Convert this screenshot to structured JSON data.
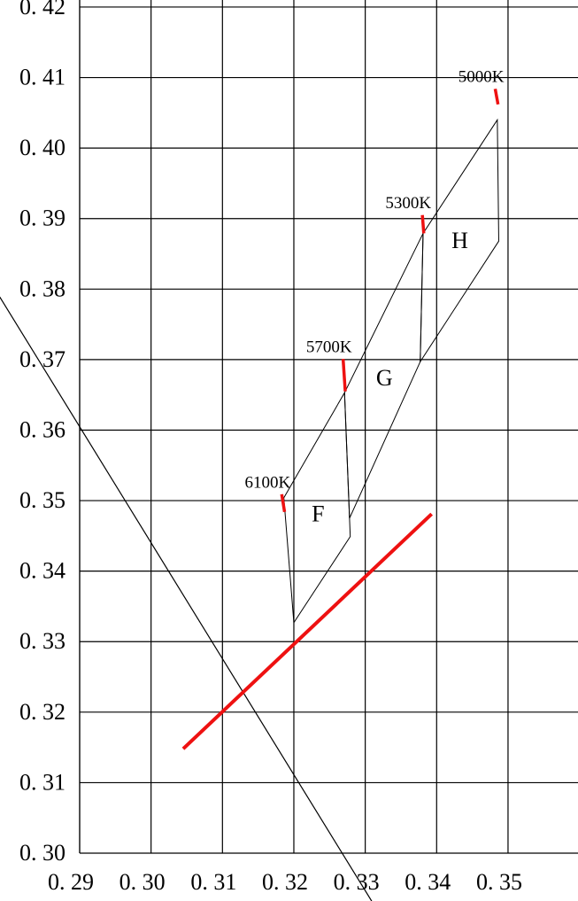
{
  "chart_data": {
    "type": "chromaticity",
    "xlim": [
      0.29,
      0.3598
    ],
    "ylim": [
      0.3,
      0.421
    ],
    "xticks": [
      {
        "value": 0.29,
        "label": "0. 29"
      },
      {
        "value": 0.3,
        "label": "0. 30"
      },
      {
        "value": 0.31,
        "label": "0. 31"
      },
      {
        "value": 0.32,
        "label": "0. 32"
      },
      {
        "value": 0.33,
        "label": "0. 33"
      },
      {
        "value": 0.34,
        "label": "0. 34"
      },
      {
        "value": 0.35,
        "label": "0. 35"
      }
    ],
    "yticks": [
      {
        "value": 0.3,
        "label": "0. 30"
      },
      {
        "value": 0.31,
        "label": "0. 31"
      },
      {
        "value": 0.32,
        "label": "0. 32"
      },
      {
        "value": 0.33,
        "label": "0. 33"
      },
      {
        "value": 0.34,
        "label": "0. 34"
      },
      {
        "value": 0.35,
        "label": "0. 35"
      },
      {
        "value": 0.36,
        "label": "0. 36"
      },
      {
        "value": 0.37,
        "label": "0. 37"
      },
      {
        "value": 0.38,
        "label": "0. 38"
      },
      {
        "value": 0.39,
        "label": "0. 39"
      },
      {
        "value": 0.4,
        "label": "0. 40"
      },
      {
        "value": 0.41,
        "label": "0. 41"
      },
      {
        "value": 0.42,
        "label": "0. 42"
      }
    ],
    "grid": true,
    "regions": [
      {
        "name": "F",
        "x": [
          0.3186,
          0.3271,
          0.3279,
          0.32
        ],
        "y": [
          0.3504,
          0.3653,
          0.3449,
          0.3327
        ]
      },
      {
        "name": "G",
        "x": [
          0.3271,
          0.3381,
          0.3377,
          0.3278
        ],
        "y": [
          0.3653,
          0.3879,
          0.3697,
          0.3475
        ]
      },
      {
        "name": "H",
        "x": [
          0.3381,
          0.3485,
          0.3487,
          0.3377
        ],
        "y": [
          0.3879,
          0.404,
          0.3868,
          0.3697
        ]
      }
    ],
    "cct_marks": [
      {
        "name": "6100K",
        "x": [
          0.3183,
          0.3187
        ],
        "y": [
          0.3509,
          0.3484
        ]
      },
      {
        "name": "5700K",
        "x": [
          0.3269,
          0.3272
        ],
        "y": [
          0.3701,
          0.3655
        ]
      },
      {
        "name": "5300K",
        "x": [
          0.338,
          0.3382
        ],
        "y": [
          0.3905,
          0.3879
        ]
      },
      {
        "name": "5000K",
        "x": [
          0.3482,
          0.3486
        ],
        "y": [
          0.4084,
          0.4062
        ]
      }
    ],
    "red_line": {
      "color": "#ee1111",
      "x": [
        0.3045,
        0.3393
      ],
      "y": [
        0.3148,
        0.3481
      ]
    },
    "black_line": {
      "color": "#000000",
      "x": [
        0.2788,
        0.3309
      ],
      "y": [
        0.3789,
        0.2932
      ]
    },
    "mark_color": "#ee1111"
  }
}
